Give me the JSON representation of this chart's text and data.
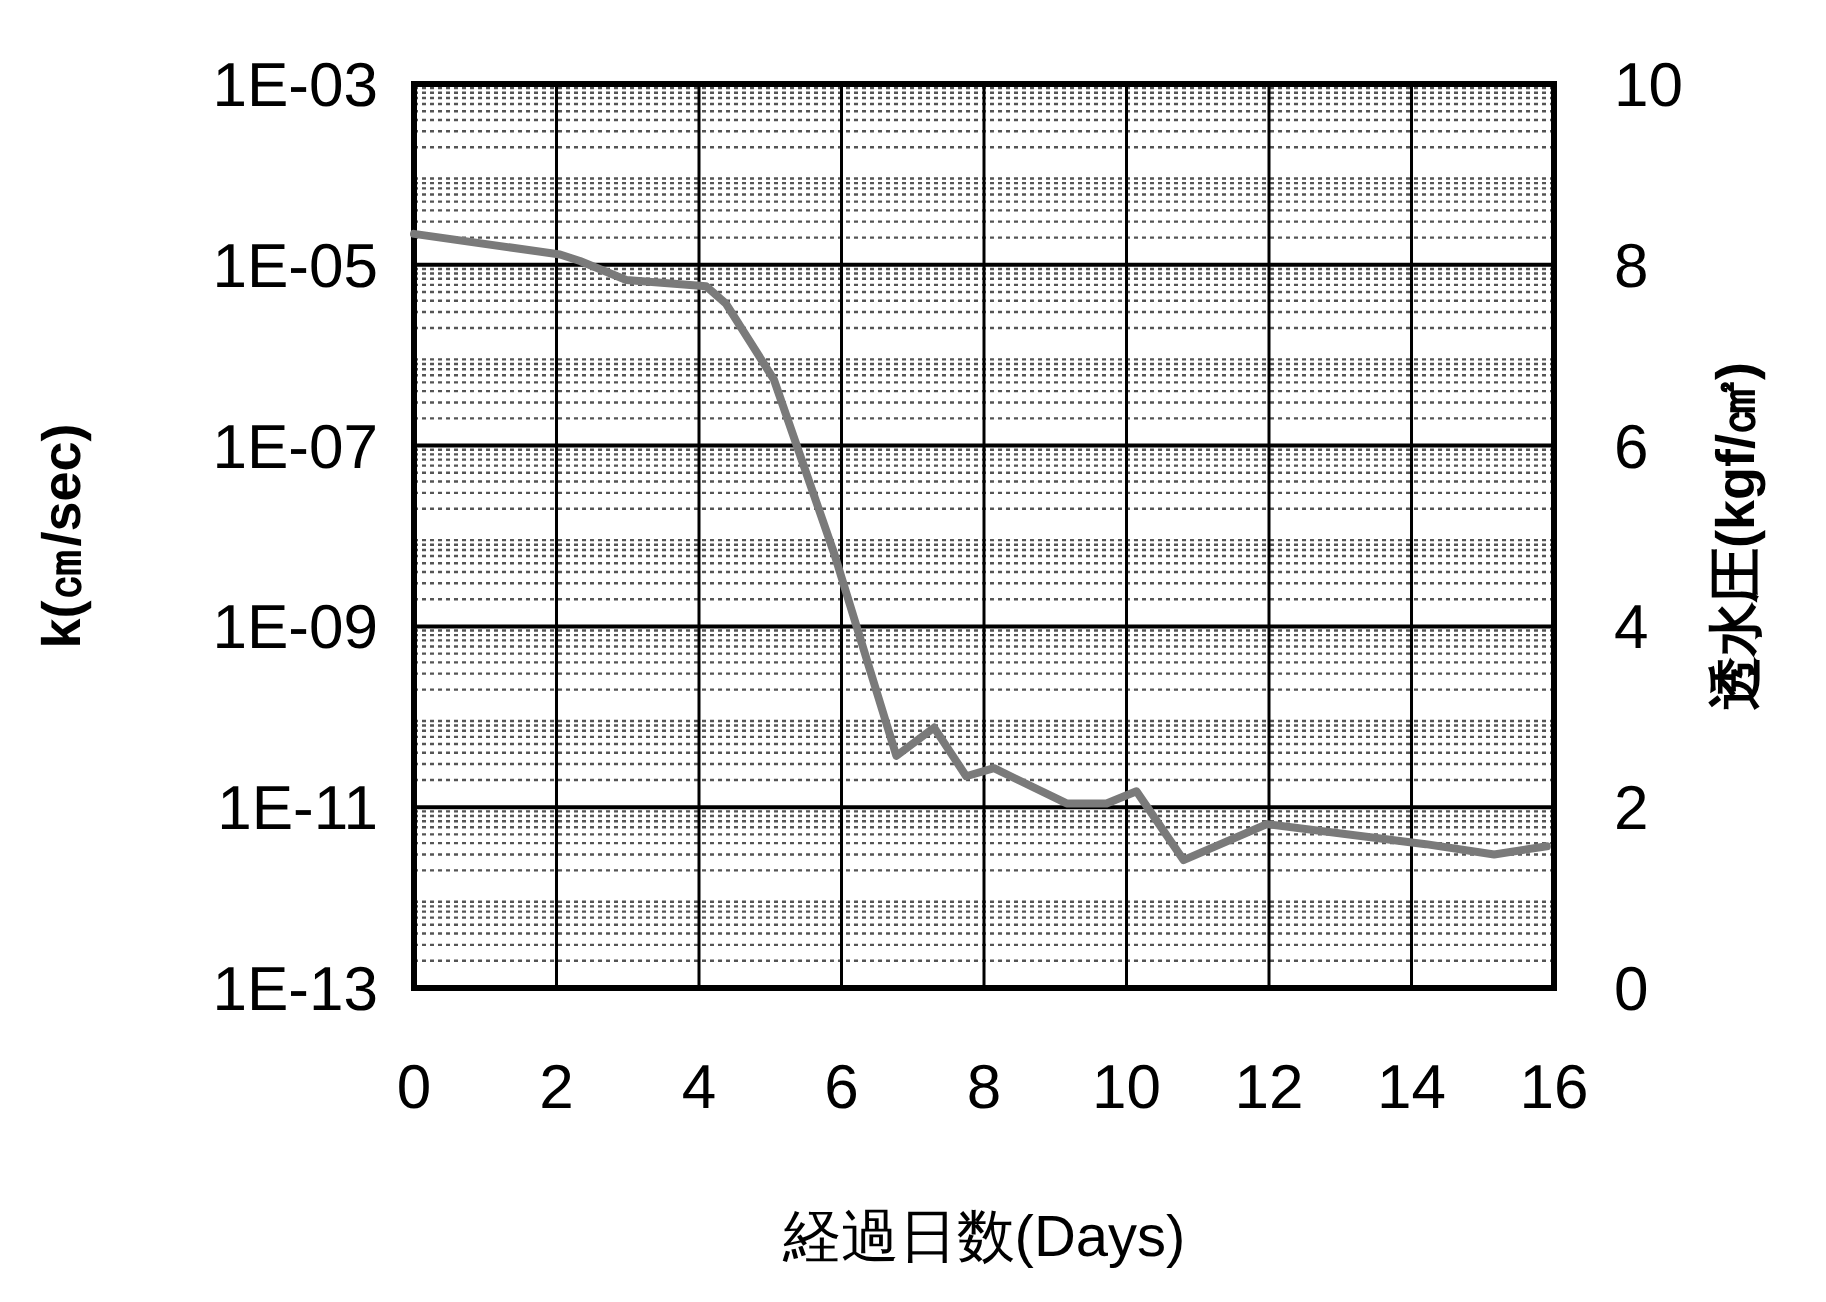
{
  "chart_data": {
    "type": "line",
    "xlabel": "経過日数(Days)",
    "ylabel": "k(㎝/sec)",
    "y2label": "透水圧(kgf/㎠)",
    "log": "y",
    "grid": true,
    "line_style": "solid",
    "marker": "none",
    "xlim": [
      0,
      16
    ],
    "xticks": [
      0,
      2,
      4,
      6,
      8,
      10,
      12,
      14,
      16
    ],
    "ylim": [
      1e-13,
      0.001
    ],
    "yticks": [
      {
        "value": 1e-13,
        "label": "1E-13"
      },
      {
        "value": 1e-11,
        "label": "1E-11"
      },
      {
        "value": 1e-09,
        "label": "1E-09"
      },
      {
        "value": 1e-07,
        "label": "1E-07"
      },
      {
        "value": 1e-05,
        "label": "1E-05"
      },
      {
        "value": 0.001,
        "label": "1E-03"
      }
    ],
    "y2lim": [
      0,
      10
    ],
    "y2ticks": [
      0,
      2,
      4,
      6,
      8,
      10
    ],
    "series": [
      {
        "color": "#7a7a7a",
        "x": [
          0,
          2.05,
          2.33,
          2.98,
          4.1,
          4.38,
          5.05,
          5.9,
          6.77,
          7.3,
          7.75,
          8.14,
          9.16,
          9.72,
          10.14,
          10.8,
          11.97,
          14.2,
          15.16,
          15.9
        ],
        "values": [
          2.2e-05,
          1.3e-05,
          1.1e-05,
          6.8e-06,
          5.8e-06,
          3.7e-06,
          5.4e-07,
          6.3e-09,
          3.7e-11,
          7.6e-11,
          2.2e-11,
          2.7e-11,
          1.1e-11,
          1.1e-11,
          1.5e-11,
          2.6e-12,
          6.5e-12,
          3.9e-12,
          3e-12,
          3.7e-12
        ]
      }
    ]
  }
}
